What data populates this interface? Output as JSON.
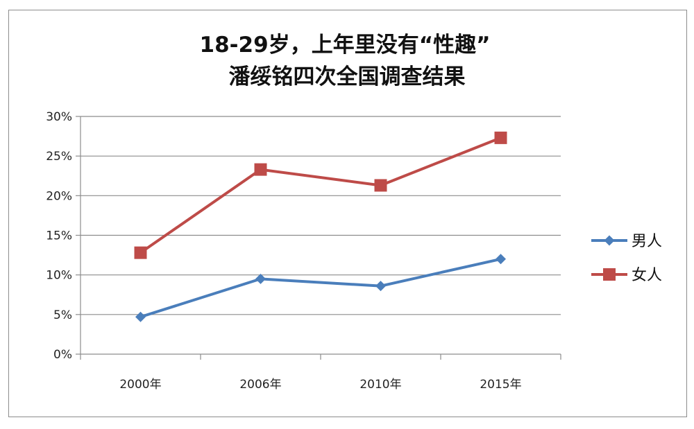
{
  "chart_data": {
    "type": "line",
    "title": [
      "18-29岁，上年里没有“性趣”",
      "潘绥铭四次全国调查结果"
    ],
    "categories": [
      "2000年",
      "2006年",
      "2010年",
      "2015年"
    ],
    "y_ticks": [
      "0%",
      "5%",
      "10%",
      "15%",
      "20%",
      "25%",
      "30%"
    ],
    "ylim": [
      0,
      30
    ],
    "y_unit": "%",
    "grid": true,
    "legend_position": "right",
    "series": [
      {
        "name": "男人",
        "values": [
          4.7,
          9.5,
          8.6,
          12.0
        ],
        "color": "#4a7ebb",
        "marker": "diamond"
      },
      {
        "name": "女人",
        "values": [
          12.8,
          23.3,
          21.3,
          27.3
        ],
        "color": "#be4b48",
        "marker": "square"
      }
    ]
  }
}
